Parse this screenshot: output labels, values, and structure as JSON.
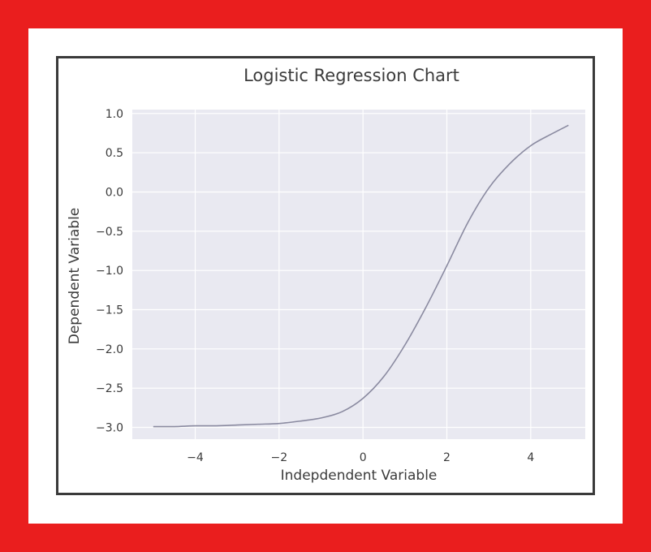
{
  "chart_data": {
    "type": "line",
    "title": "Logistic Regression Chart",
    "xlabel": "Indepdendent Variable",
    "ylabel": "Dependent Variable",
    "xlim": [
      -5.5,
      5.3
    ],
    "ylim": [
      -3.15,
      1.05
    ],
    "xticks": [
      -4,
      -2,
      0,
      2,
      4
    ],
    "xtick_labels": [
      "−4",
      "−2",
      "0",
      "2",
      "4"
    ],
    "yticks": [
      1.0,
      0.5,
      0.0,
      -0.5,
      -1.0,
      -1.5,
      -2.0,
      -2.5,
      -3.0
    ],
    "ytick_labels": [
      "1.0",
      "0.5",
      "0.0",
      "−0.5",
      "−1.0",
      "−1.5",
      "−2.0",
      "−2.5",
      "−3.0"
    ],
    "grid": true,
    "background_color": "#e9e9f1",
    "line_color": "#8a8aa0",
    "series": [
      {
        "x": [
          -5.0,
          -4.5,
          -4.0,
          -3.5,
          -3.0,
          -2.5,
          -2.0,
          -1.5,
          -1.0,
          -0.5,
          0.0,
          0.5,
          1.0,
          1.5,
          2.0,
          2.5,
          3.0,
          3.5,
          4.0,
          4.5,
          4.9
        ],
        "y": [
          -2.99,
          -2.99,
          -2.98,
          -2.98,
          -2.97,
          -2.96,
          -2.95,
          -2.92,
          -2.88,
          -2.8,
          -2.63,
          -2.35,
          -1.95,
          -1.47,
          -0.94,
          -0.39,
          0.05,
          0.36,
          0.59,
          0.74,
          0.85
        ]
      }
    ]
  }
}
